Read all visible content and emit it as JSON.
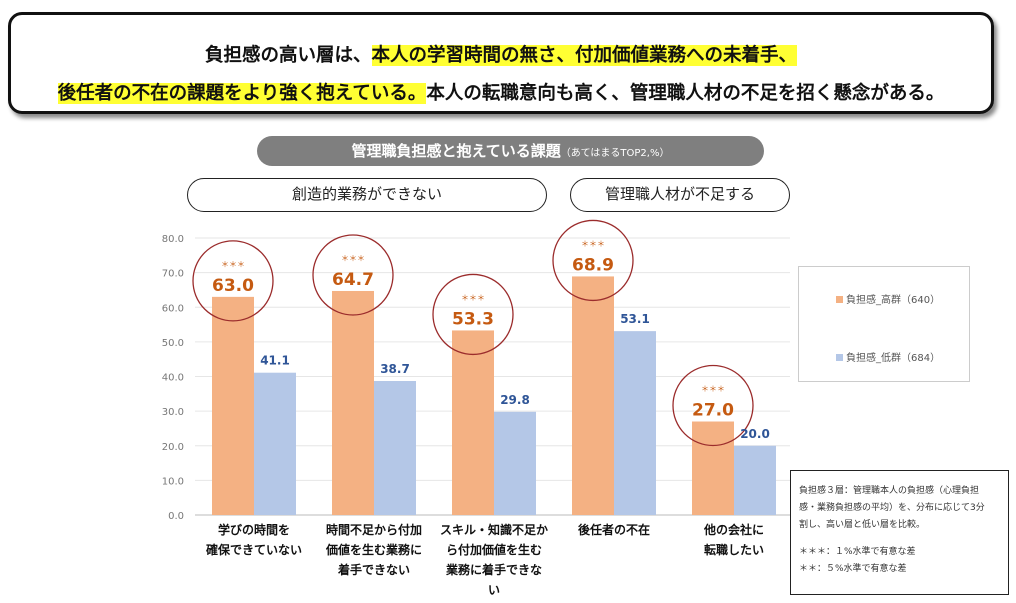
{
  "headline": {
    "l1_a": "負担感の高い層は、",
    "l1_b": "本人の学習時間の無さ、付加価値業務への未着手、",
    "l2_a": "後任者の不在の課題をより強く抱えている。",
    "l2_b": "本人の転職意向も高く、管理職人材の不足を招く懸念がある。"
  },
  "chart_title": "管理職負担感と抱えている課題",
  "chart_subtitle": "（あてはまるTOP2,%）",
  "groups": {
    "creative": "創造的業務ができない",
    "shortage": "管理職人材が不足する"
  },
  "legend": {
    "high": "負担感_高群（640）",
    "low": "負担感_低群（684）"
  },
  "note": {
    "l1": "負担感３層：管理職本人の負担感（心理負担",
    "l2": "感・業務負担感の平均）を、分布に応じて3分",
    "l3": "割し、高い層と低い層を比較。",
    "l4": "＊＊＊：１%水準で有意な差",
    "l5": "＊＊：５%水準で有意な差"
  },
  "colors": {
    "high": "#f4b183",
    "low": "#b4c7e7",
    "high_label": "#c55a11",
    "low_label": "#2f5597",
    "circle": "#9b2c2c"
  },
  "chart_data": {
    "type": "bar",
    "categories": [
      [
        "学びの時間を",
        "確保できていない"
      ],
      [
        "時間不足から付加",
        "価値を生む業務に",
        "着手できない"
      ],
      [
        "スキル・知識不足か",
        "ら付加価値を生む",
        "業務に着手できな",
        "い"
      ],
      [
        "後任者の不在"
      ],
      [
        "他の会社に",
        "転職したい"
      ]
    ],
    "series": [
      {
        "name": "負担感_高群（640）",
        "values": [
          63.0,
          64.7,
          53.3,
          68.9,
          27.0
        ],
        "significance": [
          "＊＊＊",
          "＊＊＊",
          "＊＊＊",
          "＊＊＊",
          "＊＊＊"
        ]
      },
      {
        "name": "負担感_低群（684）",
        "values": [
          41.1,
          38.7,
          29.8,
          53.1,
          20.0
        ]
      }
    ],
    "ylim": [
      0,
      80
    ],
    "yticks": [
      "0.0",
      "10.0",
      "20.0",
      "30.0",
      "40.0",
      "50.0",
      "60.0",
      "70.0",
      "80.0"
    ],
    "grid": true,
    "legend_position": "right"
  }
}
